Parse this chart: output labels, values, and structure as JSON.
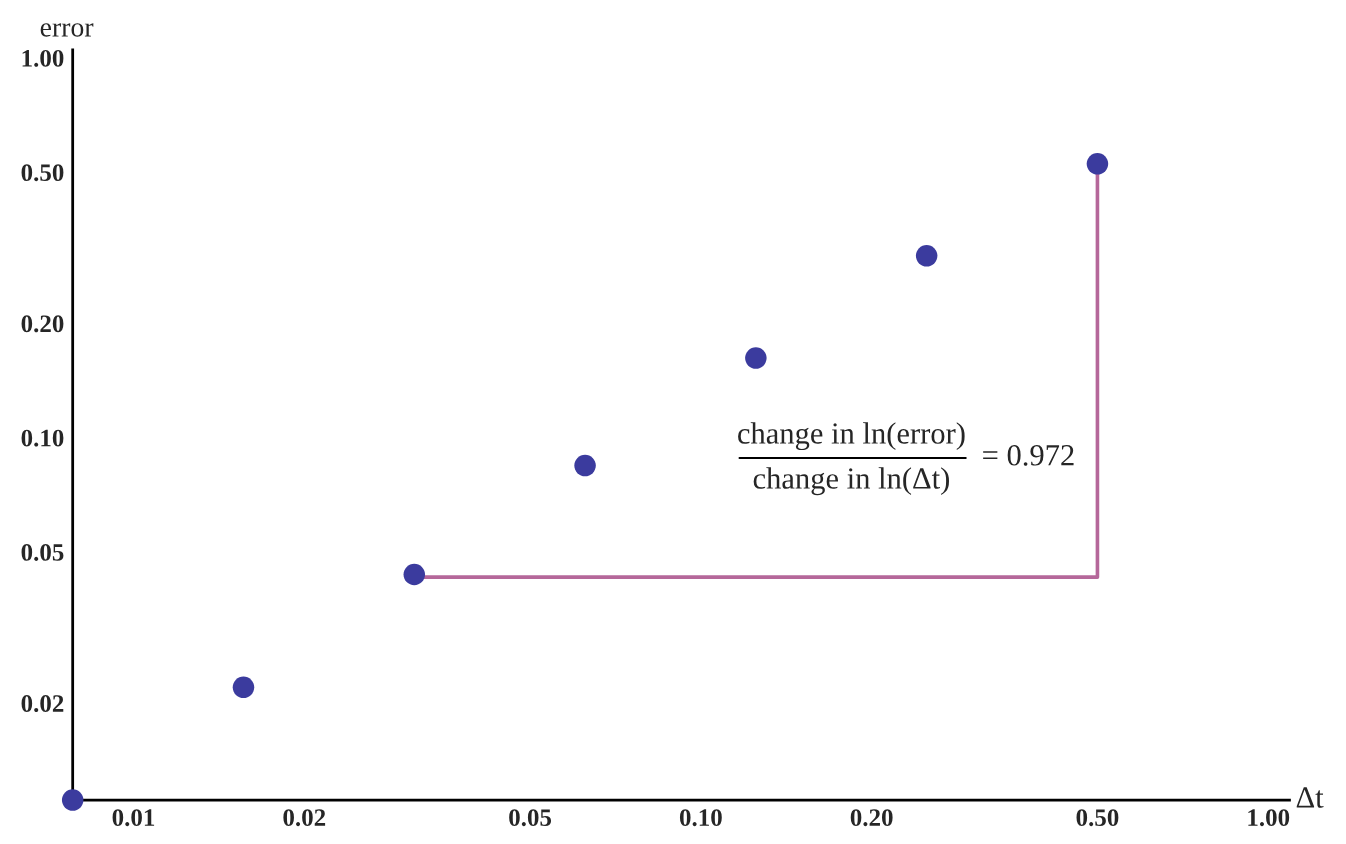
{
  "chart_data": {
    "type": "scatter",
    "xlabel": "Δt",
    "ylabel": "error",
    "log": "xy",
    "grid": false,
    "xlim": [
      0.0078125,
      1.09
    ],
    "ylim": [
      0.0111,
      1.05
    ],
    "xticks": [
      {
        "value": 0.01,
        "label": "0.01"
      },
      {
        "value": 0.02,
        "label": "0.02"
      },
      {
        "value": 0.05,
        "label": "0.05"
      },
      {
        "value": 0.1,
        "label": "0.10"
      },
      {
        "value": 0.2,
        "label": "0.20"
      },
      {
        "value": 0.5,
        "label": "0.50"
      },
      {
        "value": 1,
        "label": "1.00"
      }
    ],
    "yticks": [
      {
        "value": 0.02,
        "label": "0.02"
      },
      {
        "value": 0.05,
        "label": "0.05"
      },
      {
        "value": 0.1,
        "label": "0.10"
      },
      {
        "value": 0.2,
        "label": "0.20"
      },
      {
        "value": 0.5,
        "label": "0.50"
      },
      {
        "value": 1,
        "label": "1.00"
      }
    ],
    "series": [
      {
        "marker": "circle",
        "color": "#3b3b9e",
        "x": [
          0.0078125,
          0.015625,
          0.03125,
          0.0625,
          0.125,
          0.25,
          0.5
        ],
        "values": [
          0.0111,
          0.022,
          0.0436,
          0.0844,
          0.162,
          0.301,
          0.526
        ]
      },
      {
        "type": "line",
        "marker": "none",
        "color": "#b5679a",
        "x": [
          0.03125,
          0.5,
          0.5
        ],
        "values": [
          0.0429,
          0.0429,
          0.526
        ]
      }
    ],
    "annotations": [
      "change in ln(error)",
      "change in ln(Δt)",
      "= 0.972"
    ]
  }
}
